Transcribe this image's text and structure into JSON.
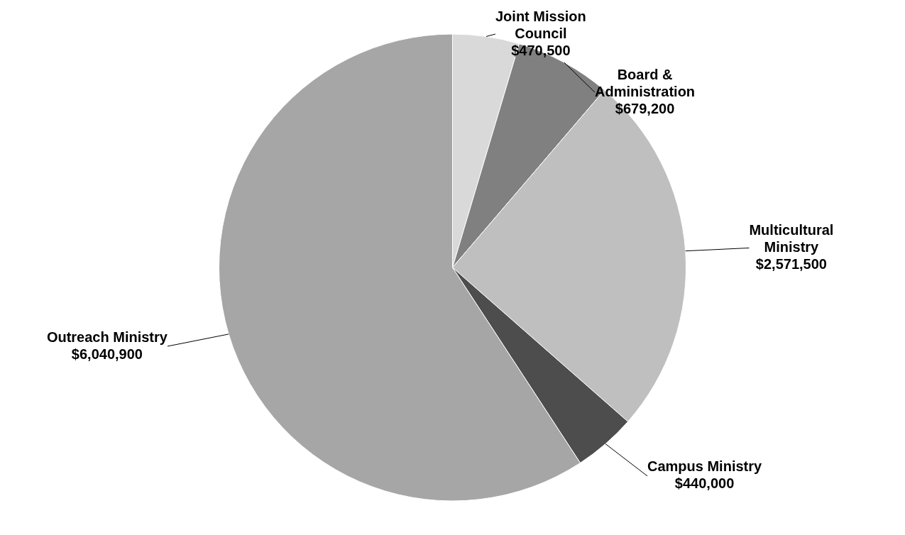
{
  "chart_data": {
    "type": "pie",
    "categories": [
      "Joint Mission Council",
      "Board & Administration",
      "Multicultural Ministry",
      "Campus Ministry",
      "Outreach Ministry"
    ],
    "values": [
      470500,
      679200,
      2571500,
      440000,
      6040900
    ],
    "colors": [
      "#d9d9d9",
      "#808080",
      "#bfbfbf",
      "#4d4d4d",
      "#a6a6a6"
    ],
    "value_labels": [
      "$470,500",
      "$679,200",
      "$2,571,500",
      "$440,000",
      "$6,040,900"
    ]
  }
}
